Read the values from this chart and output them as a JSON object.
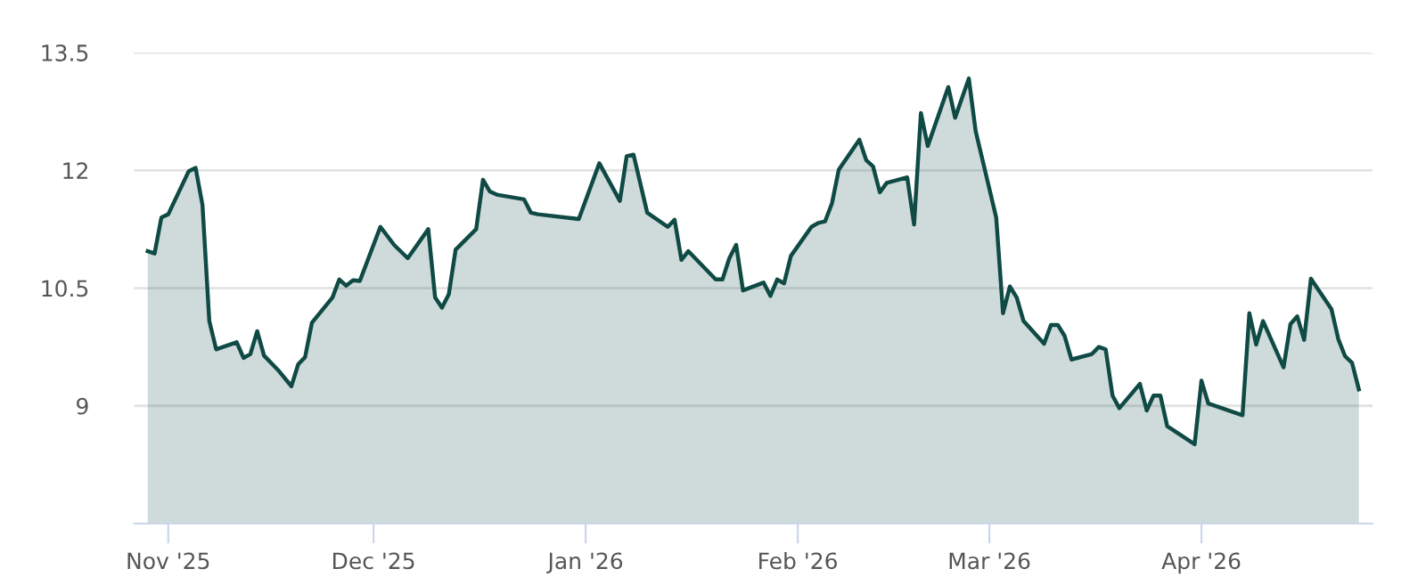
{
  "chart_data": {
    "type": "area",
    "x": [
      "2025-10-29",
      "2025-10-30",
      "2025-10-31",
      "2025-11-01",
      "2025-11-04",
      "2025-11-05",
      "2025-11-06",
      "2025-11-07",
      "2025-11-08",
      "2025-11-11",
      "2025-11-12",
      "2025-11-13",
      "2025-11-14",
      "2025-11-15",
      "2025-11-17",
      "2025-11-19",
      "2025-11-20",
      "2025-11-21",
      "2025-11-22",
      "2025-11-25",
      "2025-11-26",
      "2025-11-27",
      "2025-11-28",
      "2025-11-29",
      "2025-12-02",
      "2025-12-04",
      "2025-12-06",
      "2025-12-09",
      "2025-12-10",
      "2025-12-11",
      "2025-12-12",
      "2025-12-13",
      "2025-12-16",
      "2025-12-17",
      "2025-12-18",
      "2025-12-19",
      "2025-12-23",
      "2025-12-24",
      "2025-12-25",
      "2025-12-31",
      "2026-01-03",
      "2026-01-06",
      "2026-01-07",
      "2026-01-08",
      "2026-01-10",
      "2026-01-13",
      "2026-01-14",
      "2026-01-15",
      "2026-01-16",
      "2026-01-20",
      "2026-01-21",
      "2026-01-22",
      "2026-01-23",
      "2026-01-24",
      "2026-01-27",
      "2026-01-28",
      "2026-01-29",
      "2026-01-30",
      "2026-01-31",
      "2026-02-03",
      "2026-02-04",
      "2026-02-05",
      "2026-02-06",
      "2026-02-07",
      "2026-02-10",
      "2026-02-11",
      "2026-02-12",
      "2026-02-13",
      "2026-02-14",
      "2026-02-17",
      "2026-02-18",
      "2026-02-19",
      "2026-02-20",
      "2026-02-23",
      "2026-02-24",
      "2026-02-26",
      "2026-02-27",
      "2026-03-02",
      "2026-03-03",
      "2026-03-04",
      "2026-03-05",
      "2026-03-06",
      "2026-03-09",
      "2026-03-10",
      "2026-03-11",
      "2026-03-12",
      "2026-03-13",
      "2026-03-16",
      "2026-03-17",
      "2026-03-18",
      "2026-03-19",
      "2026-03-20",
      "2026-03-23",
      "2026-03-24",
      "2026-03-25",
      "2026-03-26",
      "2026-03-27",
      "2026-03-31",
      "2026-04-01",
      "2026-04-02",
      "2026-04-07",
      "2026-04-08",
      "2026-04-09",
      "2026-04-10",
      "2026-04-13",
      "2026-04-14",
      "2026-04-15",
      "2026-04-16",
      "2026-04-17",
      "2026-04-20",
      "2026-04-21",
      "2026-04-22",
      "2026-04-23",
      "2026-04-24"
    ],
    "series": [
      {
        "color": "#0f4a45",
        "values": [
          10.97,
          10.94,
          11.4,
          11.44,
          11.99,
          12.03,
          11.56,
          10.08,
          9.72,
          9.81,
          9.61,
          9.66,
          9.95,
          9.64,
          9.46,
          9.25,
          9.53,
          9.62,
          10.06,
          10.38,
          10.61,
          10.53,
          10.6,
          10.59,
          11.28,
          11.05,
          10.88,
          11.25,
          10.38,
          10.25,
          10.42,
          10.99,
          11.25,
          11.88,
          11.73,
          11.69,
          11.63,
          11.46,
          11.44,
          11.38,
          12.09,
          11.61,
          12.18,
          12.2,
          11.46,
          11.28,
          11.37,
          10.86,
          10.97,
          10.61,
          10.61,
          10.88,
          11.05,
          10.47,
          10.57,
          10.4,
          10.61,
          10.56,
          10.91,
          11.28,
          11.33,
          11.35,
          11.58,
          12.01,
          12.39,
          12.13,
          12.05,
          11.72,
          11.84,
          11.91,
          11.31,
          12.73,
          12.31,
          13.06,
          12.67,
          13.17,
          12.5,
          11.4,
          10.18,
          10.52,
          10.38,
          10.08,
          9.79,
          10.03,
          10.03,
          9.89,
          9.59,
          9.66,
          9.75,
          9.72,
          9.13,
          8.97,
          9.28,
          8.94,
          9.13,
          9.13,
          8.74,
          8.51,
          9.32,
          9.03,
          8.88,
          10.18,
          9.78,
          10.08,
          9.49,
          10.04,
          10.14,
          9.84,
          10.62,
          10.23,
          9.85,
          9.63,
          9.55,
          9.21
        ]
      }
    ],
    "xlim": [
      "2025-10-27",
      "2026-04-26"
    ],
    "xticks": [
      {
        "value": "2025-11-01",
        "label": "Nov '25"
      },
      {
        "value": "2025-12-01",
        "label": "Dec '25"
      },
      {
        "value": "2026-01-01",
        "label": "Jan '26"
      },
      {
        "value": "2026-02-01",
        "label": "Feb '26"
      },
      {
        "value": "2026-03-01",
        "label": "Mar '26"
      },
      {
        "value": "2026-04-01",
        "label": "Apr '26"
      }
    ],
    "ylim": [
      7.5,
      13.5
    ],
    "yticks": [
      9,
      10.5,
      12,
      13.5
    ],
    "grid": "y",
    "line_style": "solid"
  }
}
